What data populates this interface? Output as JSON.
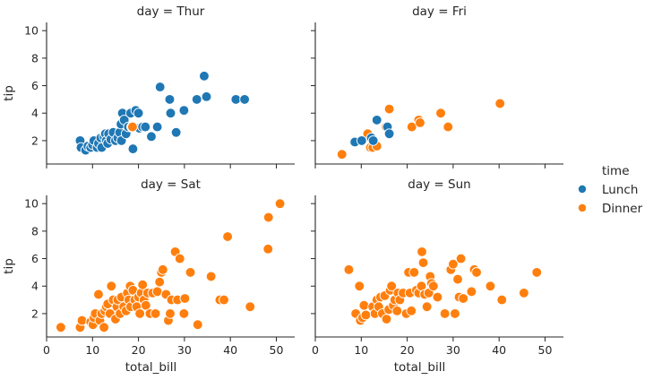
{
  "chart_data": {
    "type": "scatter",
    "facet_title_prefix": "day = ",
    "xlabel": "total_bill",
    "ylabel": "tip",
    "xlim": [
      0,
      54
    ],
    "ylim": [
      0.3,
      10.6
    ],
    "xticks": [
      0,
      10,
      20,
      30,
      40,
      50
    ],
    "yticks": [
      2,
      4,
      6,
      8,
      10
    ],
    "legend": {
      "title": "time",
      "placement": "right",
      "entries": [
        {
          "name": "Lunch",
          "color": "#1f77b4"
        },
        {
          "name": "Dinner",
          "color": "#ff7f0e"
        }
      ]
    },
    "facets": [
      {
        "day": "Thur",
        "points": [
          {
            "x": 7.3,
            "y": 2.0,
            "time": "Lunch"
          },
          {
            "x": 7.5,
            "y": 1.5,
            "time": "Lunch"
          },
          {
            "x": 8.5,
            "y": 1.3,
            "time": "Lunch"
          },
          {
            "x": 9.0,
            "y": 1.6,
            "time": "Lunch"
          },
          {
            "x": 9.6,
            "y": 1.5,
            "time": "Lunch"
          },
          {
            "x": 10.0,
            "y": 1.7,
            "time": "Lunch"
          },
          {
            "x": 10.3,
            "y": 2.0,
            "time": "Lunch"
          },
          {
            "x": 11.0,
            "y": 1.5,
            "time": "Lunch"
          },
          {
            "x": 11.3,
            "y": 1.8,
            "time": "Lunch"
          },
          {
            "x": 11.8,
            "y": 2.2,
            "time": "Lunch"
          },
          {
            "x": 12.0,
            "y": 1.5,
            "time": "Lunch"
          },
          {
            "x": 12.5,
            "y": 2.3,
            "time": "Lunch"
          },
          {
            "x": 12.8,
            "y": 2.5,
            "time": "Lunch"
          },
          {
            "x": 13.0,
            "y": 2.0,
            "time": "Lunch"
          },
          {
            "x": 13.3,
            "y": 1.8,
            "time": "Lunch"
          },
          {
            "x": 13.5,
            "y": 2.5,
            "time": "Lunch"
          },
          {
            "x": 14.0,
            "y": 2.1,
            "time": "Lunch"
          },
          {
            "x": 14.5,
            "y": 2.6,
            "time": "Lunch"
          },
          {
            "x": 15.0,
            "y": 2.0,
            "time": "Lunch"
          },
          {
            "x": 15.5,
            "y": 2.2,
            "time": "Lunch"
          },
          {
            "x": 15.9,
            "y": 2.6,
            "time": "Lunch"
          },
          {
            "x": 16.2,
            "y": 3.2,
            "time": "Lunch"
          },
          {
            "x": 16.3,
            "y": 2.0,
            "time": "Lunch"
          },
          {
            "x": 16.5,
            "y": 4.0,
            "time": "Lunch"
          },
          {
            "x": 16.9,
            "y": 3.5,
            "time": "Lunch"
          },
          {
            "x": 17.3,
            "y": 2.5,
            "time": "Lunch"
          },
          {
            "x": 17.8,
            "y": 3.0,
            "time": "Lunch"
          },
          {
            "x": 18.3,
            "y": 4.0,
            "time": "Lunch"
          },
          {
            "x": 18.5,
            "y": 3.0,
            "time": "Lunch"
          },
          {
            "x": 18.8,
            "y": 1.4,
            "time": "Lunch"
          },
          {
            "x": 19.4,
            "y": 4.2,
            "time": "Lunch"
          },
          {
            "x": 20.0,
            "y": 4.0,
            "time": "Lunch"
          },
          {
            "x": 20.2,
            "y": 2.9,
            "time": "Lunch"
          },
          {
            "x": 20.9,
            "y": 3.0,
            "time": "Lunch"
          },
          {
            "x": 21.5,
            "y": 3.0,
            "time": "Lunch"
          },
          {
            "x": 22.8,
            "y": 2.3,
            "time": "Lunch"
          },
          {
            "x": 24.1,
            "y": 3.0,
            "time": "Lunch"
          },
          {
            "x": 24.7,
            "y": 5.9,
            "time": "Lunch"
          },
          {
            "x": 26.8,
            "y": 5.0,
            "time": "Lunch"
          },
          {
            "x": 27.0,
            "y": 4.0,
            "time": "Lunch"
          },
          {
            "x": 28.2,
            "y": 2.6,
            "time": "Lunch"
          },
          {
            "x": 29.9,
            "y": 4.2,
            "time": "Lunch"
          },
          {
            "x": 32.7,
            "y": 5.0,
            "time": "Lunch"
          },
          {
            "x": 34.3,
            "y": 6.7,
            "time": "Lunch"
          },
          {
            "x": 34.8,
            "y": 5.2,
            "time": "Lunch"
          },
          {
            "x": 41.2,
            "y": 5.0,
            "time": "Lunch"
          },
          {
            "x": 43.1,
            "y": 5.0,
            "time": "Lunch"
          },
          {
            "x": 18.7,
            "y": 3.0,
            "time": "Dinner"
          }
        ]
      },
      {
        "day": "Fri",
        "points": [
          {
            "x": 5.8,
            "y": 1.0,
            "time": "Dinner"
          },
          {
            "x": 11.4,
            "y": 2.5,
            "time": "Dinner"
          },
          {
            "x": 12.0,
            "y": 1.5,
            "time": "Dinner"
          },
          {
            "x": 12.5,
            "y": 1.5,
            "time": "Dinner"
          },
          {
            "x": 13.4,
            "y": 1.6,
            "time": "Dinner"
          },
          {
            "x": 15.4,
            "y": 3.0,
            "time": "Dinner"
          },
          {
            "x": 16.1,
            "y": 4.3,
            "time": "Dinner"
          },
          {
            "x": 21.0,
            "y": 3.0,
            "time": "Dinner"
          },
          {
            "x": 22.5,
            "y": 3.5,
            "time": "Dinner"
          },
          {
            "x": 22.8,
            "y": 3.3,
            "time": "Dinner"
          },
          {
            "x": 27.3,
            "y": 4.0,
            "time": "Dinner"
          },
          {
            "x": 28.9,
            "y": 3.0,
            "time": "Dinner"
          },
          {
            "x": 40.2,
            "y": 4.7,
            "time": "Dinner"
          },
          {
            "x": 8.6,
            "y": 1.9,
            "time": "Lunch"
          },
          {
            "x": 10.1,
            "y": 2.0,
            "time": "Lunch"
          },
          {
            "x": 12.2,
            "y": 2.2,
            "time": "Lunch"
          },
          {
            "x": 12.6,
            "y": 2.0,
            "time": "Lunch"
          },
          {
            "x": 13.4,
            "y": 3.5,
            "time": "Lunch"
          },
          {
            "x": 15.7,
            "y": 3.0,
            "time": "Lunch"
          },
          {
            "x": 16.1,
            "y": 2.5,
            "time": "Lunch"
          }
        ]
      },
      {
        "day": "Sat",
        "points": [
          {
            "x": 3.1,
            "y": 1.0,
            "time": "Dinner"
          },
          {
            "x": 7.3,
            "y": 1.0,
            "time": "Dinner"
          },
          {
            "x": 7.7,
            "y": 1.5,
            "time": "Dinner"
          },
          {
            "x": 9.6,
            "y": 1.4,
            "time": "Dinner"
          },
          {
            "x": 10.1,
            "y": 1.2,
            "time": "Dinner"
          },
          {
            "x": 10.3,
            "y": 1.7,
            "time": "Dinner"
          },
          {
            "x": 10.6,
            "y": 2.0,
            "time": "Dinner"
          },
          {
            "x": 11.3,
            "y": 3.4,
            "time": "Dinner"
          },
          {
            "x": 11.6,
            "y": 1.5,
            "time": "Dinner"
          },
          {
            "x": 12.0,
            "y": 2.0,
            "time": "Dinner"
          },
          {
            "x": 12.5,
            "y": 1.0,
            "time": "Dinner"
          },
          {
            "x": 12.7,
            "y": 2.2,
            "time": "Dinner"
          },
          {
            "x": 13.0,
            "y": 2.5,
            "time": "Dinner"
          },
          {
            "x": 13.3,
            "y": 2.7,
            "time": "Dinner"
          },
          {
            "x": 13.8,
            "y": 2.0,
            "time": "Dinner"
          },
          {
            "x": 14.1,
            "y": 4.0,
            "time": "Dinner"
          },
          {
            "x": 14.5,
            "y": 3.0,
            "time": "Dinner"
          },
          {
            "x": 15.0,
            "y": 1.6,
            "time": "Dinner"
          },
          {
            "x": 15.3,
            "y": 2.5,
            "time": "Dinner"
          },
          {
            "x": 15.5,
            "y": 3.0,
            "time": "Dinner"
          },
          {
            "x": 16.0,
            "y": 2.0,
            "time": "Dinner"
          },
          {
            "x": 16.3,
            "y": 3.2,
            "time": "Dinner"
          },
          {
            "x": 16.8,
            "y": 2.5,
            "time": "Dinner"
          },
          {
            "x": 17.3,
            "y": 2.2,
            "time": "Dinner"
          },
          {
            "x": 17.6,
            "y": 3.5,
            "time": "Dinner"
          },
          {
            "x": 17.9,
            "y": 3.0,
            "time": "Dinner"
          },
          {
            "x": 18.2,
            "y": 4.0,
            "time": "Dinner"
          },
          {
            "x": 18.3,
            "y": 2.5,
            "time": "Dinner"
          },
          {
            "x": 18.8,
            "y": 3.7,
            "time": "Dinner"
          },
          {
            "x": 19.2,
            "y": 3.0,
            "time": "Dinner"
          },
          {
            "x": 19.6,
            "y": 2.5,
            "time": "Dinner"
          },
          {
            "x": 20.0,
            "y": 3.2,
            "time": "Dinner"
          },
          {
            "x": 20.3,
            "y": 2.0,
            "time": "Dinner"
          },
          {
            "x": 20.6,
            "y": 3.5,
            "time": "Dinner"
          },
          {
            "x": 20.9,
            "y": 4.1,
            "time": "Dinner"
          },
          {
            "x": 21.2,
            "y": 3.0,
            "time": "Dinner"
          },
          {
            "x": 21.6,
            "y": 2.6,
            "time": "Dinner"
          },
          {
            "x": 22.0,
            "y": 3.5,
            "time": "Dinner"
          },
          {
            "x": 22.5,
            "y": 2.0,
            "time": "Dinner"
          },
          {
            "x": 23.1,
            "y": 3.5,
            "time": "Dinner"
          },
          {
            "x": 23.7,
            "y": 2.0,
            "time": "Dinner"
          },
          {
            "x": 24.1,
            "y": 3.6,
            "time": "Dinner"
          },
          {
            "x": 24.6,
            "y": 4.3,
            "time": "Dinner"
          },
          {
            "x": 25.0,
            "y": 5.0,
            "time": "Dinner"
          },
          {
            "x": 25.3,
            "y": 5.2,
            "time": "Dinner"
          },
          {
            "x": 26.0,
            "y": 3.4,
            "time": "Dinner"
          },
          {
            "x": 26.5,
            "y": 1.5,
            "time": "Dinner"
          },
          {
            "x": 26.9,
            "y": 2.0,
            "time": "Dinner"
          },
          {
            "x": 27.2,
            "y": 3.0,
            "time": "Dinner"
          },
          {
            "x": 28.0,
            "y": 6.5,
            "time": "Dinner"
          },
          {
            "x": 28.5,
            "y": 3.0,
            "time": "Dinner"
          },
          {
            "x": 29.0,
            "y": 6.0,
            "time": "Dinner"
          },
          {
            "x": 29.9,
            "y": 2.0,
            "time": "Dinner"
          },
          {
            "x": 30.1,
            "y": 3.1,
            "time": "Dinner"
          },
          {
            "x": 31.3,
            "y": 5.0,
            "time": "Dinner"
          },
          {
            "x": 32.9,
            "y": 1.2,
            "time": "Dinner"
          },
          {
            "x": 35.8,
            "y": 4.7,
            "time": "Dinner"
          },
          {
            "x": 37.7,
            "y": 3.0,
            "time": "Dinner"
          },
          {
            "x": 38.6,
            "y": 3.0,
            "time": "Dinner"
          },
          {
            "x": 39.4,
            "y": 7.6,
            "time": "Dinner"
          },
          {
            "x": 44.3,
            "y": 2.5,
            "time": "Dinner"
          },
          {
            "x": 48.2,
            "y": 6.7,
            "time": "Dinner"
          },
          {
            "x": 48.3,
            "y": 9.0,
            "time": "Dinner"
          },
          {
            "x": 50.8,
            "y": 10.0,
            "time": "Dinner"
          }
        ]
      },
      {
        "day": "Sun",
        "points": [
          {
            "x": 7.3,
            "y": 5.2,
            "time": "Dinner"
          },
          {
            "x": 8.8,
            "y": 2.0,
            "time": "Dinner"
          },
          {
            "x": 9.6,
            "y": 4.0,
            "time": "Dinner"
          },
          {
            "x": 9.8,
            "y": 1.5,
            "time": "Dinner"
          },
          {
            "x": 10.3,
            "y": 1.7,
            "time": "Dinner"
          },
          {
            "x": 10.6,
            "y": 2.6,
            "time": "Dinner"
          },
          {
            "x": 11.0,
            "y": 1.9,
            "time": "Dinner"
          },
          {
            "x": 12.5,
            "y": 2.5,
            "time": "Dinner"
          },
          {
            "x": 13.0,
            "y": 2.0,
            "time": "Dinner"
          },
          {
            "x": 13.4,
            "y": 3.0,
            "time": "Dinner"
          },
          {
            "x": 13.8,
            "y": 2.5,
            "time": "Dinner"
          },
          {
            "x": 14.2,
            "y": 3.2,
            "time": "Dinner"
          },
          {
            "x": 14.6,
            "y": 2.0,
            "time": "Dinner"
          },
          {
            "x": 15.1,
            "y": 3.3,
            "time": "Dinner"
          },
          {
            "x": 15.5,
            "y": 1.6,
            "time": "Dinner"
          },
          {
            "x": 16.0,
            "y": 2.3,
            "time": "Dinner"
          },
          {
            "x": 16.3,
            "y": 3.7,
            "time": "Dinner"
          },
          {
            "x": 16.6,
            "y": 4.0,
            "time": "Dinner"
          },
          {
            "x": 17.0,
            "y": 2.6,
            "time": "Dinner"
          },
          {
            "x": 17.3,
            "y": 3.0,
            "time": "Dinner"
          },
          {
            "x": 17.8,
            "y": 2.2,
            "time": "Dinner"
          },
          {
            "x": 18.0,
            "y": 3.5,
            "time": "Dinner"
          },
          {
            "x": 18.4,
            "y": 3.0,
            "time": "Dinner"
          },
          {
            "x": 19.1,
            "y": 3.5,
            "time": "Dinner"
          },
          {
            "x": 19.8,
            "y": 2.0,
            "time": "Dinner"
          },
          {
            "x": 20.3,
            "y": 5.0,
            "time": "Dinner"
          },
          {
            "x": 20.6,
            "y": 3.5,
            "time": "Dinner"
          },
          {
            "x": 20.9,
            "y": 2.2,
            "time": "Dinner"
          },
          {
            "x": 21.5,
            "y": 5.0,
            "time": "Dinner"
          },
          {
            "x": 22.0,
            "y": 3.7,
            "time": "Dinner"
          },
          {
            "x": 22.5,
            "y": 3.5,
            "time": "Dinner"
          },
          {
            "x": 23.1,
            "y": 4.0,
            "time": "Dinner"
          },
          {
            "x": 23.2,
            "y": 6.5,
            "time": "Dinner"
          },
          {
            "x": 23.5,
            "y": 5.7,
            "time": "Dinner"
          },
          {
            "x": 23.8,
            "y": 3.4,
            "time": "Dinner"
          },
          {
            "x": 24.3,
            "y": 2.5,
            "time": "Dinner"
          },
          {
            "x": 24.7,
            "y": 3.5,
            "time": "Dinner"
          },
          {
            "x": 25.0,
            "y": 4.7,
            "time": "Dinner"
          },
          {
            "x": 25.3,
            "y": 4.2,
            "time": "Dinner"
          },
          {
            "x": 25.7,
            "y": 4.0,
            "time": "Dinner"
          },
          {
            "x": 26.6,
            "y": 3.2,
            "time": "Dinner"
          },
          {
            "x": 28.2,
            "y": 2.0,
            "time": "Dinner"
          },
          {
            "x": 29.5,
            "y": 5.2,
            "time": "Dinner"
          },
          {
            "x": 30.0,
            "y": 5.6,
            "time": "Dinner"
          },
          {
            "x": 30.4,
            "y": 2.0,
            "time": "Dinner"
          },
          {
            "x": 31.0,
            "y": 4.5,
            "time": "Dinner"
          },
          {
            "x": 31.3,
            "y": 3.2,
            "time": "Dinner"
          },
          {
            "x": 31.7,
            "y": 6.0,
            "time": "Dinner"
          },
          {
            "x": 32.2,
            "y": 3.1,
            "time": "Dinner"
          },
          {
            "x": 34.0,
            "y": 3.6,
            "time": "Dinner"
          },
          {
            "x": 34.6,
            "y": 5.2,
            "time": "Dinner"
          },
          {
            "x": 35.1,
            "y": 5.0,
            "time": "Dinner"
          },
          {
            "x": 38.1,
            "y": 4.0,
            "time": "Dinner"
          },
          {
            "x": 40.6,
            "y": 3.0,
            "time": "Dinner"
          },
          {
            "x": 45.4,
            "y": 3.5,
            "time": "Dinner"
          },
          {
            "x": 48.2,
            "y": 5.0,
            "time": "Dinner"
          }
        ]
      }
    ]
  }
}
